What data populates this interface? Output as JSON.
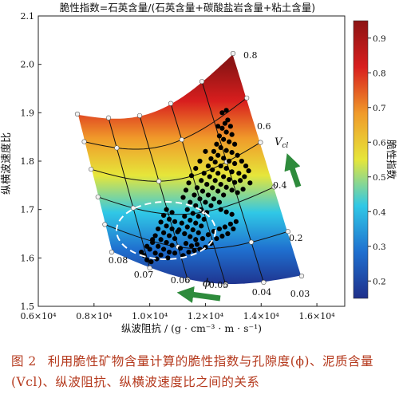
{
  "chart_data": {
    "type": "scatter",
    "title": "脆性指数=石英含量/(石英含量+碳酸盐岩含量+粘土含量)",
    "xlabel": "纵波阻抗 / (g · cm⁻³ · m · s⁻¹)",
    "ylabel": "纵横波速度比",
    "xlim": [
      6000,
      17000
    ],
    "ylim": [
      1.5,
      2.1
    ],
    "x_ticks": [
      6000,
      8000,
      10000,
      12000,
      14000,
      16000
    ],
    "x_tick_labels": [
      "0.6×10⁴",
      "0.8×10⁴",
      "1.0×10⁴",
      "1.2×10⁴",
      "1.4×10⁴",
      "1.6×10⁴"
    ],
    "y_ticks": [
      1.5,
      1.6,
      1.7,
      1.8,
      1.9,
      2.0,
      2.1
    ],
    "y_tick_labels": [
      "1.5",
      "1.6",
      "1.7",
      "1.8",
      "1.9",
      "2.0",
      "2.1"
    ],
    "grid": false,
    "colorbar": {
      "label": "脆性指数",
      "range": [
        0.15,
        0.95
      ],
      "ticks": [
        0.2,
        0.3,
        0.4,
        0.5,
        0.6,
        0.7,
        0.8,
        0.9
      ],
      "tick_labels": [
        "0.2",
        "0.3",
        "0.4",
        "0.5",
        "0.6",
        "0.7",
        "0.8",
        "0.9"
      ],
      "colors": [
        "#1f2f8a",
        "#1f6fcf",
        "#30c8e6",
        "#e6e63a",
        "#f09a2a",
        "#d81e1e",
        "#8c1414"
      ]
    },
    "template_model": {
      "porosity_labels": [
        "0.08",
        "0.07",
        "0.06",
        "0.05",
        "0.04",
        "0.03"
      ],
      "porosity_symbol": "ϕ",
      "vcl_labels": [
        "0.2",
        "0.4",
        "0.6",
        "0.8"
      ],
      "vcl_symbol": "V",
      "vcl_subscript": "cl",
      "arrow_color": "#2e8b3c"
    },
    "data_cloud": {
      "color": "#000000",
      "points": [
        [
          12800,
          1.885
        ],
        [
          12700,
          1.878
        ],
        [
          12900,
          1.872
        ],
        [
          12600,
          1.868
        ],
        [
          12750,
          1.86
        ],
        [
          12950,
          1.855
        ],
        [
          12500,
          1.852
        ],
        [
          12650,
          1.845
        ],
        [
          12850,
          1.84
        ],
        [
          13050,
          1.835
        ],
        [
          12400,
          1.835
        ],
        [
          12550,
          1.828
        ],
        [
          12750,
          1.822
        ],
        [
          12950,
          1.818
        ],
        [
          13150,
          1.812
        ],
        [
          12300,
          1.82
        ],
        [
          12450,
          1.812
        ],
        [
          12650,
          1.806
        ],
        [
          12850,
          1.8
        ],
        [
          13050,
          1.795
        ],
        [
          12200,
          1.805
        ],
        [
          12350,
          1.798
        ],
        [
          12550,
          1.79
        ],
        [
          12750,
          1.785
        ],
        [
          12950,
          1.778
        ],
        [
          13200,
          1.775
        ],
        [
          12100,
          1.79
        ],
        [
          12250,
          1.782
        ],
        [
          12450,
          1.775
        ],
        [
          12650,
          1.768
        ],
        [
          12850,
          1.762
        ],
        [
          13050,
          1.756
        ],
        [
          11950,
          1.775
        ],
        [
          12150,
          1.768
        ],
        [
          12350,
          1.76
        ],
        [
          12550,
          1.752
        ],
        [
          12750,
          1.746
        ],
        [
          12950,
          1.74
        ],
        [
          11850,
          1.76
        ],
        [
          12050,
          1.752
        ],
        [
          12250,
          1.745
        ],
        [
          12450,
          1.738
        ],
        [
          12650,
          1.73
        ],
        [
          11700,
          1.745
        ],
        [
          11900,
          1.738
        ],
        [
          12100,
          1.73
        ],
        [
          12300,
          1.722
        ],
        [
          12500,
          1.715
        ],
        [
          11600,
          1.73
        ],
        [
          11800,
          1.722
        ],
        [
          12000,
          1.715
        ],
        [
          12200,
          1.708
        ],
        [
          11450,
          1.715
        ],
        [
          11650,
          1.708
        ],
        [
          11850,
          1.7
        ],
        [
          12050,
          1.694
        ],
        [
          11350,
          1.7
        ],
        [
          11550,
          1.692
        ],
        [
          11750,
          1.686
        ],
        [
          11950,
          1.68
        ],
        [
          11250,
          1.686
        ],
        [
          11450,
          1.678
        ],
        [
          11650,
          1.672
        ],
        [
          11850,
          1.666
        ],
        [
          11150,
          1.672
        ],
        [
          11350,
          1.664
        ],
        [
          11550,
          1.658
        ],
        [
          11750,
          1.652
        ],
        [
          11050,
          1.658
        ],
        [
          11250,
          1.65
        ],
        [
          11450,
          1.644
        ],
        [
          11650,
          1.638
        ],
        [
          13300,
          1.8
        ],
        [
          13450,
          1.79
        ],
        [
          13550,
          1.78
        ],
        [
          13400,
          1.768
        ],
        [
          13250,
          1.76
        ],
        [
          13600,
          1.755
        ],
        [
          13350,
          1.742
        ],
        [
          13150,
          1.735
        ],
        [
          12000,
          1.82
        ],
        [
          11800,
          1.8
        ],
        [
          11650,
          1.785
        ],
        [
          11500,
          1.77
        ],
        [
          11400,
          1.755
        ],
        [
          11300,
          1.74
        ],
        [
          11200,
          1.725
        ],
        [
          12600,
          1.9
        ],
        [
          12750,
          1.905
        ],
        [
          12450,
          1.872
        ],
        [
          10600,
          1.7
        ],
        [
          10800,
          1.694
        ],
        [
          10500,
          1.688
        ],
        [
          10700,
          1.68
        ],
        [
          10900,
          1.675
        ],
        [
          10400,
          1.674
        ],
        [
          10600,
          1.666
        ],
        [
          10800,
          1.66
        ],
        [
          11000,
          1.654
        ],
        [
          10300,
          1.66
        ],
        [
          10500,
          1.652
        ],
        [
          10700,
          1.646
        ],
        [
          10900,
          1.64
        ],
        [
          10200,
          1.646
        ],
        [
          10400,
          1.638
        ],
        [
          10600,
          1.632
        ],
        [
          10800,
          1.626
        ],
        [
          10100,
          1.632
        ],
        [
          10300,
          1.624
        ],
        [
          10500,
          1.618
        ],
        [
          10700,
          1.612
        ],
        [
          10000,
          1.618
        ],
        [
          10200,
          1.61
        ],
        [
          10400,
          1.606
        ],
        [
          10650,
          1.6
        ],
        [
          10900,
          1.61
        ],
        [
          11100,
          1.62
        ],
        [
          11300,
          1.63
        ],
        [
          11500,
          1.625
        ],
        [
          11700,
          1.628
        ],
        [
          11900,
          1.64
        ],
        [
          12100,
          1.648
        ],
        [
          12300,
          1.655
        ],
        [
          12500,
          1.66
        ],
        [
          12700,
          1.664
        ],
        [
          12900,
          1.67
        ],
        [
          13100,
          1.675
        ],
        [
          12950,
          1.69
        ],
        [
          12750,
          1.695
        ],
        [
          12550,
          1.7
        ],
        [
          11200,
          1.605
        ],
        [
          11400,
          1.612
        ],
        [
          11600,
          1.615
        ],
        [
          11800,
          1.618
        ],
        [
          12000,
          1.622
        ],
        [
          12200,
          1.63
        ],
        [
          12400,
          1.64
        ],
        [
          12600,
          1.645
        ],
        [
          12800,
          1.65
        ],
        [
          13000,
          1.66
        ],
        [
          9800,
          1.605
        ],
        [
          9900,
          1.596
        ],
        [
          10050,
          1.592
        ],
        [
          10250,
          1.598
        ],
        [
          9700,
          1.612
        ],
        [
          9900,
          1.624
        ],
        [
          10100,
          1.638
        ]
      ]
    }
  },
  "caption": {
    "figure_number": "图 2",
    "text": "利用脆性矿物含量计算的脆性指数与孔隙度(ϕ)、泥质含量(Vcl)、纵波阻抗、纵横波速度比之间的关系"
  }
}
